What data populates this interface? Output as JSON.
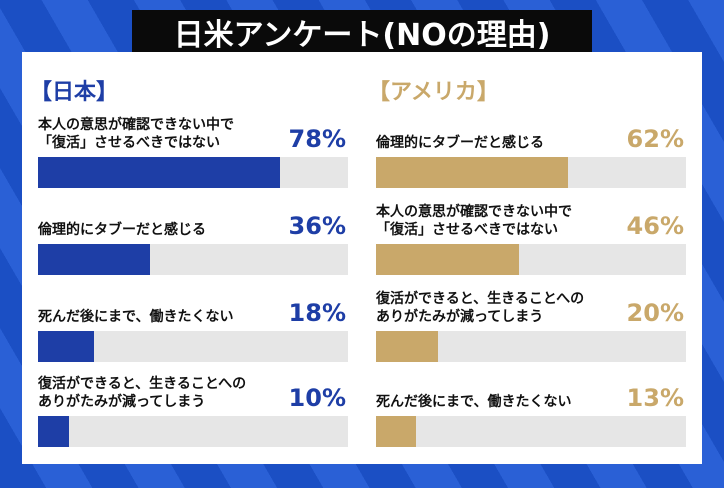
{
  "title": "日米アンケート(NOの理由)",
  "chart_data": [
    {
      "type": "bar",
      "title": "【日本】",
      "color": "#1e3ea6",
      "track_color": "#e6e6e6",
      "xlim": [
        0,
        100
      ],
      "categories": [
        "本人の意思が確認できない中で\n「復活」させるべきではない",
        "倫理的にタブーだと感じる",
        "死んだ後にまで、働きたくない",
        "復活ができると、生きることへの\nありがたみが減ってしまう"
      ],
      "values": [
        78,
        36,
        18,
        10
      ],
      "value_labels": [
        "78%",
        "36%",
        "18%",
        "10%"
      ]
    },
    {
      "type": "bar",
      "title": "【アメリカ】",
      "color": "#c9a86a",
      "track_color": "#e6e6e6",
      "xlim": [
        0,
        100
      ],
      "categories": [
        "倫理的にタブーだと感じる",
        "本人の意思が確認できない中で\n「復活」させるべきではない",
        "復活ができると、生きることへの\nありがたみが減ってしまう",
        "死んだ後にまで、働きたくない"
      ],
      "values": [
        62,
        46,
        20,
        13
      ],
      "value_labels": [
        "62%",
        "46%",
        "20%",
        "13%"
      ]
    }
  ]
}
